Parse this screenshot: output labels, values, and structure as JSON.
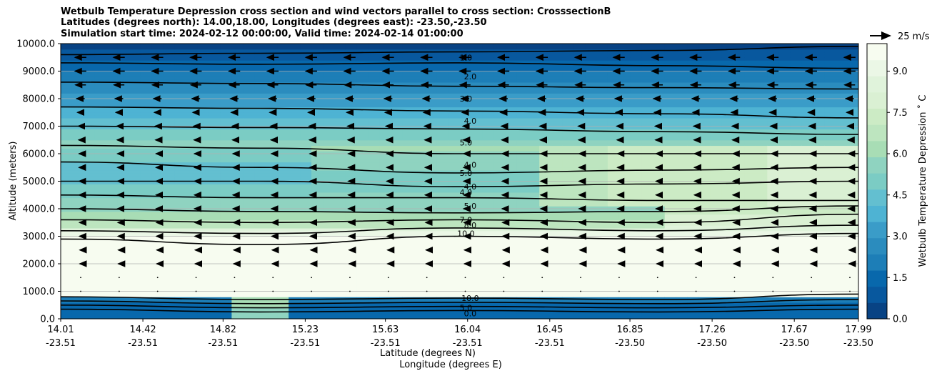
{
  "chart_data": {
    "type": "contourf",
    "title_lines": [
      "Wetbulb Temperature Depression cross section and wind vectors parallel to cross section: CrosssectionB",
      "Latitudes (degrees north): 14.00,18.00, Longitudes (degrees east): -23.50,-23.50",
      "Simulation start time: 2024-02-12 00:00:00, Valid time: 2024-02-14 01:00:00"
    ],
    "ylabel": "Altitude (meters)",
    "xlabel_lat": "Latitude (degrees N)",
    "xlabel_lon": "Longitude (degrees E)",
    "ylim": [
      0,
      10000
    ],
    "yticks": [
      "0.0",
      "1000.0",
      "2000.0",
      "3000.0",
      "4000.0",
      "5000.0",
      "6000.0",
      "7000.0",
      "8000.0",
      "9000.0",
      "10000.0"
    ],
    "xlim": [
      14.01,
      17.99
    ],
    "xticks": [
      {
        "lat": "14.01",
        "lon": "-23.51"
      },
      {
        "lat": "14.42",
        "lon": "-23.51"
      },
      {
        "lat": "14.82",
        "lon": "-23.51"
      },
      {
        "lat": "15.23",
        "lon": "-23.51"
      },
      {
        "lat": "15.63",
        "lon": "-23.51"
      },
      {
        "lat": "16.04",
        "lon": "-23.51"
      },
      {
        "lat": "16.45",
        "lon": "-23.51"
      },
      {
        "lat": "16.85",
        "lon": "-23.50"
      },
      {
        "lat": "17.26",
        "lon": "-23.50"
      },
      {
        "lat": "17.67",
        "lon": "-23.50"
      },
      {
        "lat": "17.99",
        "lon": "-23.50"
      }
    ],
    "grid": "horizontal",
    "colorbar": {
      "label": "Wetbulb Temperature Depression ˚ C",
      "vmin": 0,
      "vmax": 10,
      "ticks": [
        "0.0",
        "1.5",
        "3.0",
        "4.5",
        "6.0",
        "7.5",
        "9.0"
      ],
      "colors": [
        "#084384",
        "#08589e",
        "#0868ac",
        "#1d7eb7",
        "#2b8cbe",
        "#3a9cc8",
        "#4eb3d3",
        "#63bfd0",
        "#7bccc4",
        "#8fd3c0",
        "#a8ddb5",
        "#bde5bf",
        "#ccebc5",
        "#daf0d3",
        "#e0f3db",
        "#ebf7e6",
        "#f7fcf0"
      ]
    },
    "contour_labels": [
      {
        "text": "1.0",
        "alt": 9500
      },
      {
        "text": "2.0",
        "alt": 8800
      },
      {
        "text": "3.0",
        "alt": 8000
      },
      {
        "text": "4.0",
        "alt": 7200
      },
      {
        "text": "5.0",
        "alt": 6400
      },
      {
        "text": "4.0",
        "alt": 5600
      },
      {
        "text": "5.0",
        "alt": 5300
      },
      {
        "text": "4.0",
        "alt": 4800
      },
      {
        "text": "4.0",
        "alt": 4600
      },
      {
        "text": "5.0",
        "alt": 4100
      },
      {
        "text": "7.0",
        "alt": 3600
      },
      {
        "text": "8.0",
        "alt": 3400
      },
      {
        "text": "10.0",
        "alt": 3100
      },
      {
        "text": "10.0",
        "alt": 750
      },
      {
        "text": "5.0",
        "alt": 400
      },
      {
        "text": "0.0",
        "alt": 200
      }
    ],
    "wind_key": {
      "label": "25 m/s",
      "speed": 25
    },
    "wind_rows": [
      {
        "alt": 9500,
        "speed": 14
      },
      {
        "alt": 9000,
        "speed": 14
      },
      {
        "alt": 8500,
        "speed": 13
      },
      {
        "alt": 8000,
        "speed": 10
      },
      {
        "alt": 7500,
        "speed": 8
      },
      {
        "alt": 7000,
        "speed": 6
      },
      {
        "alt": 6500,
        "speed": 5
      },
      {
        "alt": 6000,
        "speed": 4
      },
      {
        "alt": 5500,
        "speed": 4
      },
      {
        "alt": 5000,
        "speed": 4
      },
      {
        "alt": 4500,
        "speed": 4
      },
      {
        "alt": 4000,
        "speed": 4
      },
      {
        "alt": 3500,
        "speed": 3
      },
      {
        "alt": 3000,
        "speed": 3
      },
      {
        "alt": 2500,
        "speed": 2
      },
      {
        "alt": 2000,
        "speed": 2
      },
      {
        "alt": 1500,
        "speed": 0.5
      },
      {
        "alt": 1000,
        "speed": 0.5
      }
    ]
  }
}
